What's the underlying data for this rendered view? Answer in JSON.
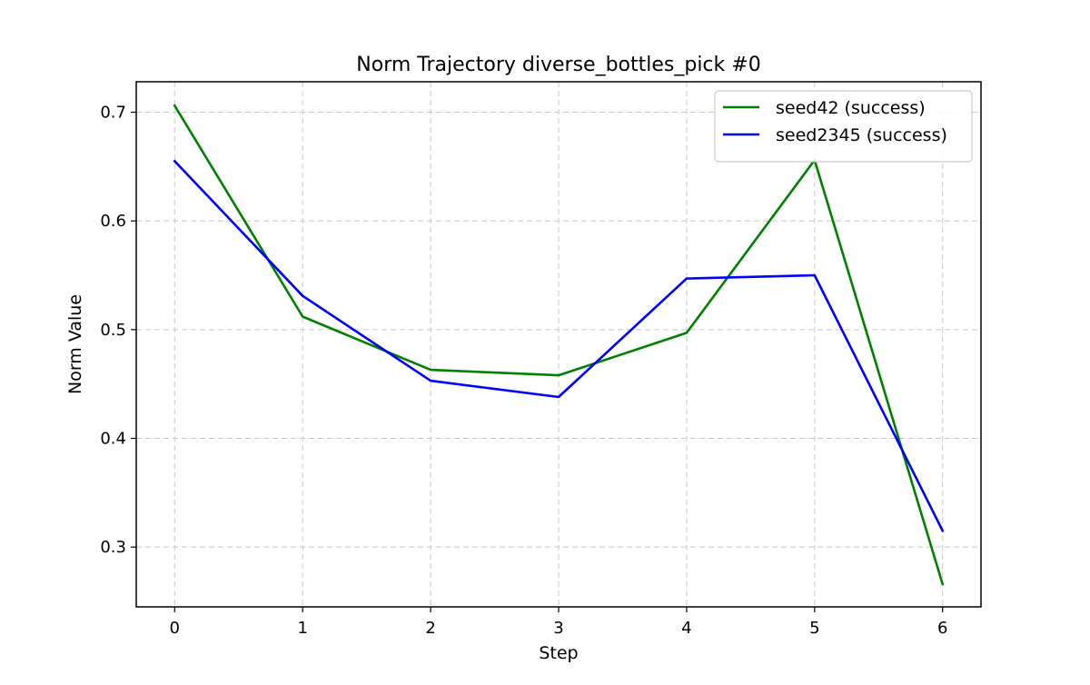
{
  "chart_data": {
    "type": "line",
    "title": "Norm Trajectory diverse_bottles_pick #0",
    "xlabel": "Step",
    "ylabel": "Norm Value",
    "x": [
      0,
      1,
      2,
      3,
      4,
      5,
      6
    ],
    "xlim": [
      -0.3,
      6.3
    ],
    "ylim": [
      0.245,
      0.728
    ],
    "xticks": [
      0,
      1,
      2,
      3,
      4,
      5,
      6
    ],
    "yticks": [
      0.3,
      0.4,
      0.5,
      0.6,
      0.7
    ],
    "ytick_labels": [
      "0.3",
      "0.4",
      "0.5",
      "0.6",
      "0.7"
    ],
    "grid": true,
    "legend_position": "top-right",
    "series": [
      {
        "name": "seed42 (success)",
        "color": "#008000",
        "values": [
          0.706,
          0.512,
          0.463,
          0.458,
          0.497,
          0.656,
          0.266
        ]
      },
      {
        "name": "seed2345 (success)",
        "color": "#0000ff",
        "values": [
          0.655,
          0.531,
          0.453,
          0.438,
          0.547,
          0.55,
          0.315
        ]
      }
    ]
  }
}
